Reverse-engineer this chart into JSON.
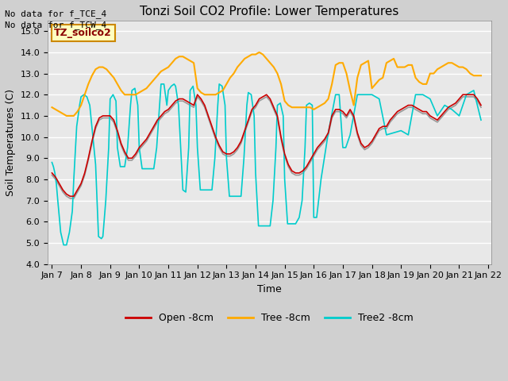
{
  "title": "Tonzi Soil CO2 Profile: Lower Temperatures",
  "ylabel": "Soil Temperatures (C)",
  "xlabel": "Time",
  "annotation1": "No data for f_TCE_4",
  "annotation2": "No data for f_TCW_4",
  "watermark": "TZ_soilco2",
  "ylim": [
    4.0,
    15.5
  ],
  "yticks": [
    4.0,
    5.0,
    6.0,
    7.0,
    8.0,
    9.0,
    10.0,
    11.0,
    12.0,
    13.0,
    14.0,
    15.0
  ],
  "xtick_labels": [
    "Jan 7",
    "Jan 8",
    "Jan 9",
    "Jan 10",
    "Jan 11",
    "Jan 12",
    "Jan 13",
    "Jan 14",
    "Jan 15",
    "Jan 16",
    "Jan 17",
    "Jan 18",
    "Jan 19",
    "Jan 20",
    "Jan 21",
    "Jan 22"
  ],
  "open_color": "#cc0000",
  "tree_color": "#ffaa00",
  "tree2_color": "#00cccc",
  "gray_color": "#999999",
  "fig_bg_color": "#d4d4d4",
  "plot_bg": "#e8e8e8",
  "legend_labels": [
    "Open -8cm",
    "Tree -8cm",
    "Tree2 -8cm"
  ],
  "open_data_x": [
    7.0,
    7.125,
    7.25,
    7.375,
    7.5,
    7.625,
    7.75,
    7.875,
    8.0,
    8.125,
    8.25,
    8.375,
    8.5,
    8.625,
    8.75,
    8.875,
    9.0,
    9.125,
    9.25,
    9.375,
    9.5,
    9.625,
    9.75,
    9.875,
    10.0,
    10.125,
    10.25,
    10.375,
    10.5,
    10.625,
    10.75,
    10.875,
    11.0,
    11.125,
    11.25,
    11.375,
    11.5,
    11.625,
    11.75,
    11.875,
    12.0,
    12.125,
    12.25,
    12.375,
    12.5,
    12.625,
    12.75,
    12.875,
    13.0,
    13.125,
    13.25,
    13.375,
    13.5,
    13.625,
    13.75,
    13.875,
    14.0,
    14.125,
    14.25,
    14.375,
    14.5,
    14.625,
    14.75,
    14.875,
    15.0,
    15.125,
    15.25,
    15.375,
    15.5,
    15.625,
    15.75,
    15.875,
    16.0,
    16.125,
    16.25,
    16.375,
    16.5,
    16.625,
    16.75,
    16.875,
    17.0,
    17.125,
    17.25,
    17.375,
    17.5,
    17.625,
    17.75,
    17.875,
    18.0,
    18.125,
    18.25,
    18.375,
    18.5,
    18.625,
    18.75,
    18.875,
    19.0,
    19.125,
    19.25,
    19.375,
    19.5,
    19.625,
    19.75,
    19.875,
    20.0,
    20.125,
    20.25,
    20.375,
    20.5,
    20.625,
    20.75,
    20.875,
    21.0,
    21.125,
    21.25,
    21.375,
    21.5,
    21.625,
    21.75
  ],
  "open_data_y": [
    8.3,
    8.1,
    7.8,
    7.5,
    7.3,
    7.2,
    7.2,
    7.5,
    7.8,
    8.3,
    9.0,
    9.8,
    10.5,
    10.9,
    11.0,
    11.0,
    11.0,
    10.8,
    10.3,
    9.7,
    9.3,
    9.0,
    9.0,
    9.2,
    9.5,
    9.7,
    9.9,
    10.2,
    10.5,
    10.8,
    11.0,
    11.2,
    11.3,
    11.5,
    11.7,
    11.8,
    11.8,
    11.7,
    11.6,
    11.5,
    12.0,
    11.8,
    11.5,
    11.0,
    10.5,
    10.0,
    9.6,
    9.3,
    9.2,
    9.2,
    9.3,
    9.5,
    9.8,
    10.3,
    10.8,
    11.3,
    11.5,
    11.8,
    11.9,
    12.0,
    11.8,
    11.4,
    11.0,
    10.0,
    9.2,
    8.7,
    8.4,
    8.3,
    8.3,
    8.4,
    8.6,
    8.9,
    9.2,
    9.5,
    9.7,
    9.9,
    10.2,
    11.0,
    11.3,
    11.3,
    11.2,
    11.0,
    11.3,
    11.0,
    10.2,
    9.7,
    9.5,
    9.6,
    9.8,
    10.1,
    10.4,
    10.5,
    10.5,
    10.8,
    11.0,
    11.2,
    11.3,
    11.4,
    11.5,
    11.5,
    11.4,
    11.3,
    11.2,
    11.2,
    11.0,
    10.9,
    10.8,
    11.0,
    11.2,
    11.4,
    11.5,
    11.6,
    11.8,
    12.0,
    12.0,
    12.0,
    12.0,
    11.8,
    11.5
  ],
  "tree_data_x": [
    7.0,
    7.125,
    7.25,
    7.375,
    7.5,
    7.625,
    7.75,
    7.875,
    8.0,
    8.125,
    8.25,
    8.375,
    8.5,
    8.625,
    8.75,
    8.875,
    9.0,
    9.125,
    9.25,
    9.375,
    9.5,
    9.625,
    9.75,
    9.875,
    10.0,
    10.125,
    10.25,
    10.375,
    10.5,
    10.625,
    10.75,
    10.875,
    11.0,
    11.125,
    11.25,
    11.375,
    11.5,
    11.625,
    11.75,
    11.875,
    12.0,
    12.125,
    12.25,
    12.375,
    12.5,
    12.625,
    12.75,
    12.875,
    13.0,
    13.125,
    13.25,
    13.375,
    13.5,
    13.625,
    13.75,
    13.875,
    14.0,
    14.125,
    14.25,
    14.375,
    14.5,
    14.625,
    14.75,
    14.875,
    15.0,
    15.125,
    15.25,
    15.375,
    15.5,
    15.625,
    15.75,
    15.875,
    16.0,
    16.125,
    16.25,
    16.375,
    16.5,
    16.625,
    16.75,
    16.875,
    17.0,
    17.125,
    17.25,
    17.375,
    17.5,
    17.625,
    17.75,
    17.875,
    18.0,
    18.125,
    18.25,
    18.375,
    18.5,
    18.625,
    18.75,
    18.875,
    19.0,
    19.125,
    19.25,
    19.375,
    19.5,
    19.625,
    19.75,
    19.875,
    20.0,
    20.125,
    20.25,
    20.375,
    20.5,
    20.625,
    20.75,
    20.875,
    21.0,
    21.125,
    21.25,
    21.375,
    21.5,
    21.625,
    21.75
  ],
  "tree_data_y": [
    11.4,
    11.3,
    11.2,
    11.1,
    11.0,
    11.0,
    11.0,
    11.2,
    11.5,
    12.0,
    12.5,
    12.9,
    13.2,
    13.3,
    13.3,
    13.2,
    13.0,
    12.8,
    12.5,
    12.2,
    12.0,
    12.0,
    12.0,
    12.0,
    12.1,
    12.2,
    12.3,
    12.5,
    12.7,
    12.9,
    13.1,
    13.2,
    13.3,
    13.5,
    13.7,
    13.8,
    13.8,
    13.7,
    13.6,
    13.5,
    12.3,
    12.1,
    12.0,
    12.0,
    12.0,
    12.0,
    12.1,
    12.2,
    12.5,
    12.8,
    13.0,
    13.3,
    13.5,
    13.7,
    13.8,
    13.9,
    13.9,
    14.0,
    13.9,
    13.7,
    13.5,
    13.3,
    13.0,
    12.5,
    11.7,
    11.5,
    11.4,
    11.4,
    11.4,
    11.4,
    11.4,
    11.4,
    11.3,
    11.4,
    11.5,
    11.6,
    11.8,
    12.5,
    13.4,
    13.5,
    13.5,
    13.0,
    12.2,
    11.5,
    12.8,
    13.4,
    13.5,
    13.6,
    12.3,
    12.5,
    12.7,
    12.8,
    13.5,
    13.6,
    13.7,
    13.3,
    13.3,
    13.3,
    13.4,
    13.4,
    12.8,
    12.6,
    12.5,
    12.5,
    13.0,
    13.0,
    13.2,
    13.3,
    13.4,
    13.5,
    13.5,
    13.4,
    13.3,
    13.3,
    13.2,
    13.0,
    12.9,
    12.9,
    12.9
  ],
  "tree2_data_x": [
    7.0,
    7.05,
    7.1,
    7.15,
    7.2,
    7.3,
    7.4,
    7.5,
    7.6,
    7.7,
    7.75,
    7.85,
    7.95,
    8.0,
    8.1,
    8.2,
    8.3,
    8.5,
    8.6,
    8.7,
    8.75,
    8.85,
    8.95,
    9.0,
    9.1,
    9.2,
    9.25,
    9.35,
    9.5,
    9.6,
    9.7,
    9.75,
    9.85,
    9.95,
    10.0,
    10.1,
    10.25,
    10.375,
    10.5,
    10.6,
    10.7,
    10.75,
    10.85,
    10.95,
    11.0,
    11.1,
    11.2,
    11.25,
    11.35,
    11.5,
    11.6,
    11.7,
    11.75,
    11.85,
    11.95,
    12.0,
    12.1,
    12.25,
    12.375,
    12.5,
    12.6,
    12.7,
    12.75,
    12.85,
    12.95,
    13.0,
    13.1,
    13.25,
    13.375,
    13.5,
    13.6,
    13.7,
    13.75,
    13.85,
    13.95,
    14.0,
    14.1,
    14.25,
    14.375,
    14.5,
    14.6,
    14.7,
    14.75,
    14.85,
    14.95,
    15.0,
    15.1,
    15.25,
    15.375,
    15.5,
    15.6,
    15.7,
    15.75,
    15.85,
    15.95,
    16.0,
    16.1,
    16.25,
    16.5,
    16.75,
    16.875,
    17.0,
    17.1,
    17.25,
    17.5,
    17.75,
    17.875,
    18.0,
    18.25,
    18.5,
    18.75,
    19.0,
    19.25,
    19.5,
    19.75,
    20.0,
    20.25,
    20.5,
    20.75,
    21.0,
    21.25,
    21.5,
    21.75
  ],
  "tree2_data_y": [
    8.8,
    8.6,
    8.3,
    7.8,
    7.0,
    5.5,
    4.9,
    4.9,
    5.5,
    6.5,
    8.0,
    10.5,
    11.5,
    11.9,
    12.0,
    11.9,
    11.5,
    8.7,
    5.3,
    5.2,
    5.3,
    7.0,
    9.5,
    11.8,
    12.0,
    11.7,
    9.5,
    8.6,
    8.6,
    9.5,
    11.5,
    12.2,
    12.3,
    11.5,
    9.5,
    8.5,
    8.5,
    8.5,
    8.5,
    9.5,
    11.5,
    12.5,
    12.5,
    11.5,
    12.2,
    12.4,
    12.5,
    12.4,
    11.5,
    7.5,
    7.4,
    9.5,
    12.2,
    12.4,
    11.5,
    9.5,
    7.5,
    7.5,
    7.5,
    7.5,
    9.0,
    11.5,
    12.5,
    12.4,
    11.5,
    9.0,
    7.2,
    7.2,
    7.2,
    7.2,
    9.0,
    11.5,
    12.1,
    12.0,
    11.0,
    8.3,
    5.8,
    5.8,
    5.8,
    5.8,
    7.0,
    9.5,
    11.5,
    11.6,
    11.0,
    8.0,
    5.9,
    5.9,
    5.9,
    6.2,
    7.0,
    9.5,
    11.5,
    11.6,
    11.5,
    6.2,
    6.2,
    8.0,
    10.2,
    12.0,
    12.0,
    9.5,
    9.5,
    10.1,
    12.0,
    12.0,
    12.0,
    12.0,
    11.8,
    10.1,
    10.2,
    10.3,
    10.1,
    12.0,
    12.0,
    11.8,
    11.0,
    11.5,
    11.3,
    11.0,
    12.0,
    12.2,
    10.8
  ],
  "gray_data_x": [
    7.0,
    7.125,
    7.25,
    7.375,
    7.5,
    7.625,
    7.75,
    7.875,
    8.0,
    8.125,
    8.25,
    8.375,
    8.5,
    8.625,
    8.75,
    8.875,
    9.0,
    9.125,
    9.25,
    9.375,
    9.5,
    9.625,
    9.75,
    9.875,
    10.0,
    10.125,
    10.25,
    10.375,
    10.5,
    10.625,
    10.75,
    10.875,
    11.0,
    11.125,
    11.25,
    11.375,
    11.5,
    11.625,
    11.75,
    11.875,
    12.0,
    12.125,
    12.25,
    12.375,
    12.5,
    12.625,
    12.75,
    12.875,
    13.0,
    13.125,
    13.25,
    13.375,
    13.5,
    13.625,
    13.75,
    13.875,
    14.0,
    14.125,
    14.25,
    14.375,
    14.5,
    14.625,
    14.75,
    14.875,
    15.0,
    15.125,
    15.25,
    15.375,
    15.5,
    15.625,
    15.75,
    15.875,
    16.0,
    16.125,
    16.25,
    16.375,
    16.5,
    16.625,
    16.75,
    16.875,
    17.0,
    17.125,
    17.25,
    17.375,
    17.5,
    17.625,
    17.75,
    17.875,
    18.0,
    18.125,
    18.25,
    18.375,
    18.5,
    18.625,
    18.75,
    18.875,
    19.0,
    19.125,
    19.25,
    19.375,
    19.5,
    19.625,
    19.75,
    19.875,
    20.0,
    20.125,
    20.25,
    20.375,
    20.5,
    20.625,
    20.75,
    20.875,
    21.0,
    21.125,
    21.25,
    21.375,
    21.5,
    21.625,
    21.75
  ],
  "gray_data_y": [
    8.2,
    8.0,
    7.7,
    7.4,
    7.2,
    7.1,
    7.1,
    7.4,
    7.7,
    8.2,
    8.9,
    9.7,
    10.4,
    10.8,
    10.9,
    10.9,
    10.9,
    10.7,
    10.2,
    9.6,
    9.2,
    8.9,
    8.9,
    9.1,
    9.4,
    9.6,
    9.8,
    10.1,
    10.4,
    10.7,
    10.9,
    11.1,
    11.2,
    11.4,
    11.6,
    11.7,
    11.7,
    11.6,
    11.5,
    11.4,
    11.9,
    11.7,
    11.4,
    10.9,
    10.4,
    9.9,
    9.5,
    9.2,
    9.1,
    9.1,
    9.2,
    9.4,
    9.7,
    10.2,
    10.7,
    11.2,
    11.4,
    11.7,
    11.8,
    11.9,
    11.7,
    11.3,
    10.9,
    9.9,
    9.1,
    8.6,
    8.3,
    8.2,
    8.2,
    8.3,
    8.5,
    8.8,
    9.1,
    9.4,
    9.6,
    9.8,
    10.1,
    10.9,
    11.2,
    11.2,
    11.1,
    10.9,
    11.2,
    10.9,
    10.1,
    9.6,
    9.4,
    9.5,
    9.7,
    10.0,
    10.3,
    10.4,
    10.4,
    10.7,
    10.9,
    11.1,
    11.2,
    11.3,
    11.4,
    11.4,
    11.3,
    11.2,
    11.1,
    11.1,
    10.9,
    10.8,
    10.7,
    10.9,
    11.1,
    11.3,
    11.4,
    11.5,
    11.7,
    11.9,
    11.9,
    11.9,
    11.9,
    11.7,
    11.4
  ]
}
